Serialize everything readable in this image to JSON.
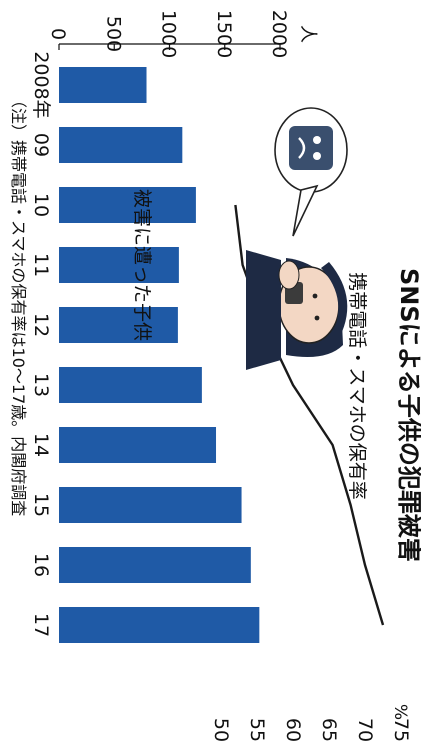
{
  "chart_data": {
    "type": "bar",
    "title": "SNSによる子供の犯罪被害",
    "note": "（注）携帯電話・スマホの保有率は10～17歳。内閣府調査",
    "categories": [
      "2008年",
      "09",
      "10",
      "11",
      "12",
      "13",
      "14",
      "15",
      "16",
      "17"
    ],
    "y_left": {
      "unit": "人",
      "ticks": [
        0,
        500,
        1000,
        1500,
        2000
      ],
      "lim": [
        0,
        2000
      ]
    },
    "y_right": {
      "unit": "%",
      "ticks": [
        50,
        55,
        60,
        65,
        70,
        75
      ],
      "lim": [
        50,
        75
      ]
    },
    "series": [
      {
        "name": "被害に遭った子供",
        "kind": "bar",
        "axis": "left",
        "values": [
          792,
          1116,
          1239,
          1085,
          1076,
          1293,
          1421,
          1652,
          1736,
          1813
        ]
      },
      {
        "name": "携帯電話・スマホの保有率",
        "kind": "line",
        "axis": "right",
        "values": [
          null,
          null,
          52,
          53,
          56,
          60,
          65.5,
          68,
          70,
          72.5
        ]
      }
    ],
    "colors": {
      "bar": "#1f5aa6",
      "line": "#1a1a1a",
      "text": "#111111",
      "illustration_skin": "#f3d7c4"
    }
  }
}
